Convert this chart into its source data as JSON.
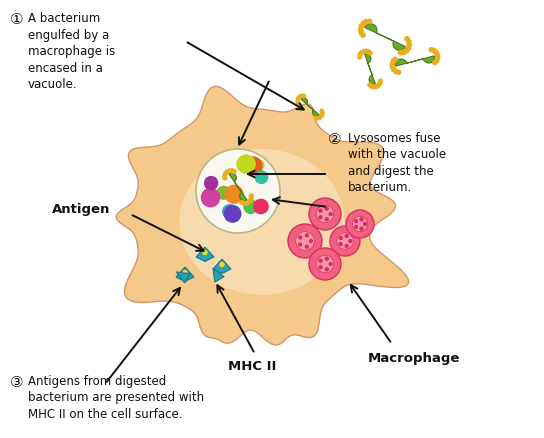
{
  "bg_color": "#ffffff",
  "macrophage_color": "#f5c98a",
  "macrophage_edge": "#d4956a",
  "inner_cell_color": "#fae8c8",
  "vacuole_bg": "#f5f0e0",
  "vacuole_edge": "#c8c890",
  "lyso_dot_colors": [
    "#80b830",
    "#e8c020",
    "#e06020",
    "#d040a0",
    "#40a0d0",
    "#c0d820",
    "#f08820",
    "#6040c0",
    "#50c050",
    "#a030a0",
    "#30c0a0",
    "#e83060"
  ],
  "pink_color": "#f06080",
  "pink_edge": "#d83060",
  "teal_color": "#28a0b8",
  "teal_dark": "#1a7888",
  "bacterium_green": "#6aaa28",
  "bacterium_dark": "#4a7a18",
  "bacterium_dot": "#e8b020",
  "text_color": "#111111",
  "arrow_color": "#111111",
  "text1": "A bacterium\nengulfed by a\nmacrophage is\nencased in a\nvacuole.",
  "text2": "Lysosomes fuse\nwith the vacuole\nand digest the\nbacterium.",
  "text3": "Antigens from digested\nbacterium are presented with\nMHC II on the cell surface.",
  "label_antigen": "Antigen",
  "label_macrophage": "Macrophage",
  "label_mhc": "MHC II",
  "num1": "①",
  "num2": "②",
  "num3": "③",
  "figsize": [
    5.44,
    4.39
  ],
  "dpi": 100
}
